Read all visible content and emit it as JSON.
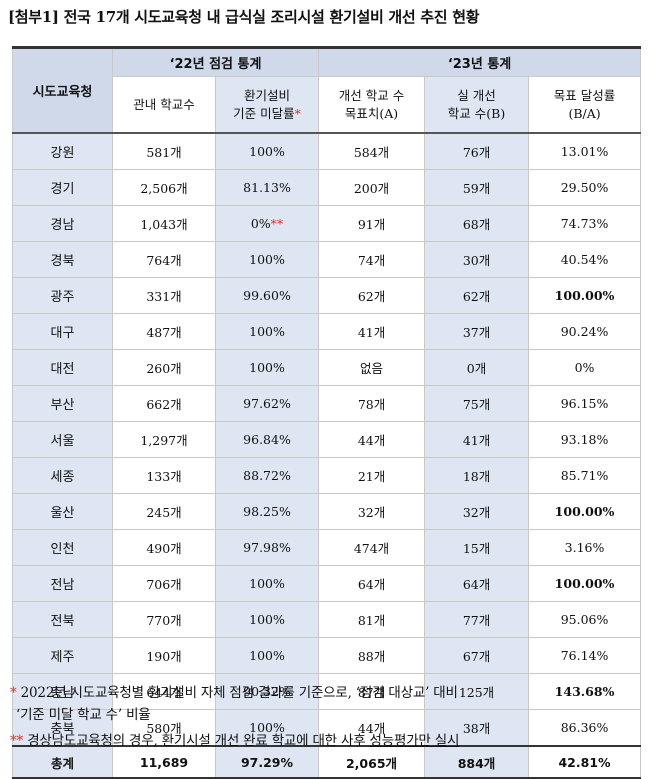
{
  "title": "[첨부1] 전국 17개 시도교육청 내 급식실 조리시설 환기설비 개선 추진 현황",
  "header": {
    "region": "시도교육청",
    "group22": "‘22년 점검 통계",
    "group23": "‘23년 통계",
    "col_schools": "관내 학교수",
    "col_unmet_line1": "환기설비",
    "col_unmet_line2": "기준 미달률",
    "col_unmet_mark": "*",
    "col_target_line1": "개선 학교 수",
    "col_target_line2": "목표치(A)",
    "col_actual_line1": "실 개선",
    "col_actual_line2": "학교 수(B)",
    "col_rate_line1": "목표 달성률",
    "col_rate_line2": "(B/A)"
  },
  "rows": [
    {
      "region": "강원",
      "schools": "581개",
      "unmet": "100%",
      "unmet_mark": "",
      "target": "584개",
      "actual": "76개",
      "rate": "13.01%",
      "rate_bold": false
    },
    {
      "region": "경기",
      "schools": "2,506개",
      "unmet": "81.13%",
      "unmet_mark": "",
      "target": "200개",
      "actual": "59개",
      "rate": "29.50%",
      "rate_bold": false
    },
    {
      "region": "경남",
      "schools": "1,043개",
      "unmet": "0%",
      "unmet_mark": "**",
      "target": "91개",
      "actual": "68개",
      "rate": "74.73%",
      "rate_bold": false
    },
    {
      "region": "경북",
      "schools": "764개",
      "unmet": "100%",
      "unmet_mark": "",
      "target": "74개",
      "actual": "30개",
      "rate": "40.54%",
      "rate_bold": false
    },
    {
      "region": "광주",
      "schools": "331개",
      "unmet": "99.60%",
      "unmet_mark": "",
      "target": "62개",
      "actual": "62개",
      "rate": "100.00%",
      "rate_bold": true
    },
    {
      "region": "대구",
      "schools": "487개",
      "unmet": "100%",
      "unmet_mark": "",
      "target": "41개",
      "actual": "37개",
      "rate": "90.24%",
      "rate_bold": false
    },
    {
      "region": "대전",
      "schools": "260개",
      "unmet": "100%",
      "unmet_mark": "",
      "target": "없음",
      "actual": "0개",
      "rate": "0%",
      "rate_bold": false
    },
    {
      "region": "부산",
      "schools": "662개",
      "unmet": "97.62%",
      "unmet_mark": "",
      "target": "78개",
      "actual": "75개",
      "rate": "96.15%",
      "rate_bold": false
    },
    {
      "region": "서울",
      "schools": "1,297개",
      "unmet": "96.84%",
      "unmet_mark": "",
      "target": "44개",
      "actual": "41개",
      "rate": "93.18%",
      "rate_bold": false
    },
    {
      "region": "세종",
      "schools": "133개",
      "unmet": "88.72%",
      "unmet_mark": "",
      "target": "21개",
      "actual": "18개",
      "rate": "85.71%",
      "rate_bold": false
    },
    {
      "region": "울산",
      "schools": "245개",
      "unmet": "98.25%",
      "unmet_mark": "",
      "target": "32개",
      "actual": "32개",
      "rate": "100.00%",
      "rate_bold": true
    },
    {
      "region": "인천",
      "schools": "490개",
      "unmet": "97.98%",
      "unmet_mark": "",
      "target": "474개",
      "actual": "15개",
      "rate": "3.16%",
      "rate_bold": false
    },
    {
      "region": "전남",
      "schools": "706개",
      "unmet": "100%",
      "unmet_mark": "",
      "target": "64개",
      "actual": "64개",
      "rate": "100.00%",
      "rate_bold": true
    },
    {
      "region": "전북",
      "schools": "770개",
      "unmet": "100%",
      "unmet_mark": "",
      "target": "81개",
      "actual": "77개",
      "rate": "95.06%",
      "rate_bold": false
    },
    {
      "region": "제주",
      "schools": "190개",
      "unmet": "100%",
      "unmet_mark": "",
      "target": "88개",
      "actual": "67개",
      "rate": "76.14%",
      "rate_bold": false
    },
    {
      "region": "충남",
      "schools": "644개",
      "unmet": "90.32%",
      "unmet_mark": "",
      "target": "87개",
      "actual": "125개",
      "rate": "143.68%",
      "rate_bold": true
    },
    {
      "region": "충북",
      "schools": "580개",
      "unmet": "100%",
      "unmet_mark": "",
      "target": "44개",
      "actual": "38개",
      "rate": "86.36%",
      "rate_bold": false
    }
  ],
  "total": {
    "region": "총계",
    "schools": "11,689",
    "unmet": "97.29%",
    "target": "2,065개",
    "actual": "884개",
    "rate": "42.81%"
  },
  "notes": {
    "note1_mark": "*",
    "note1_line1": " 2022년 시도교육청별 환기설비 자체 점검 결과를 기준으로, ‘점검 대상교’ 대비",
    "note1_line2": "‘기준 미달 학교 수’ 비율",
    "note2_mark": "**",
    "note2_text_a": " 경상남도교육청의 경우, 환기시설 개선 완료 학교에 대한 사후 ",
    "note2_text_b": "성능평가만 실시"
  },
  "colors": {
    "header_fill": "#cfd9ea",
    "shade_fill": "#dde6f2",
    "marker": "#e0301e"
  }
}
